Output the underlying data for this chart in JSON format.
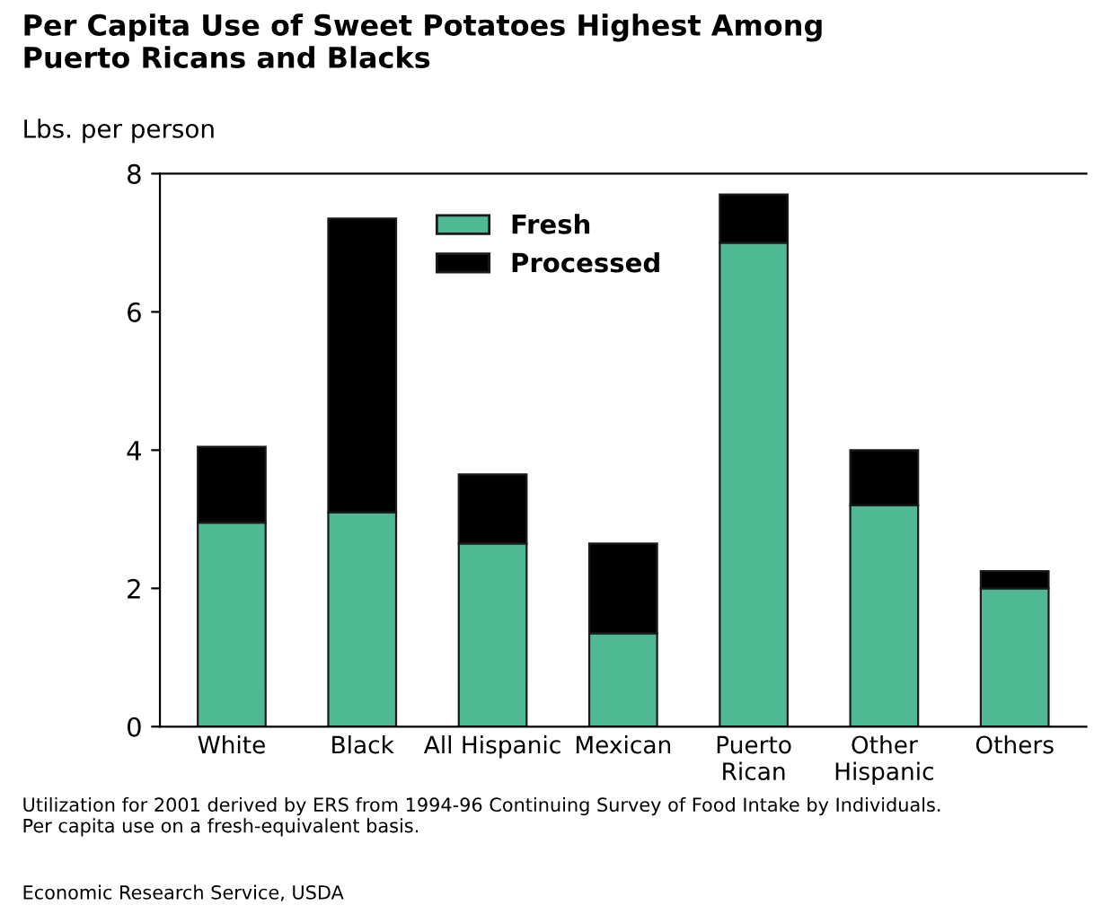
{
  "chart_data": {
    "type": "bar",
    "title": "Per Capita Use of Sweet Potatoes Highest Among\nPuerto Ricans and Blacks",
    "ylabel": "Lbs. per person",
    "categories": [
      "White",
      "Black",
      "All Hispanic",
      "Mexican",
      "Puerto\nRican",
      "Other\nHispanic",
      "Others"
    ],
    "stacked": true,
    "series": [
      {
        "name": "Fresh",
        "color": "#4fb993",
        "values": [
          2.95,
          3.1,
          2.65,
          1.35,
          7.0,
          3.2,
          2.0
        ]
      },
      {
        "name": "Processed",
        "color": "#000000",
        "values": [
          1.1,
          4.25,
          1.0,
          1.3,
          0.7,
          0.8,
          0.25
        ]
      }
    ],
    "ylim": [
      0,
      8
    ],
    "yticks": [
      0,
      2,
      4,
      6,
      8
    ],
    "grid": false,
    "legend": "top",
    "annotations": [
      "Utilization for 2001 derived by ERS from 1994-96 Continuing Survey of Food Intake by Individuals.\nPer capita use on a fresh-equivalent basis.",
      "Economic Research Service, USDA"
    ]
  }
}
